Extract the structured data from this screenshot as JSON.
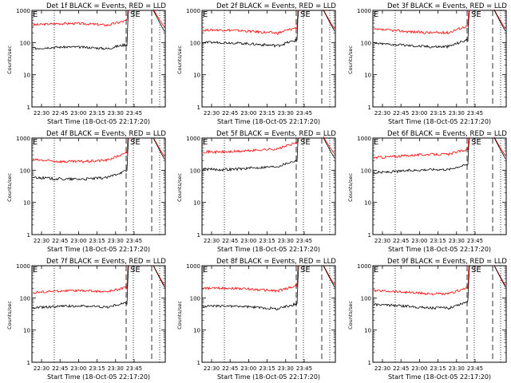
{
  "chart_data": [
    {
      "type": "line",
      "title": "Det 1f BLACK = Events, RED = LLD",
      "xlabel": "Start Time (18-Oct-05 22:17:20)",
      "ylabel": "Counts/sec",
      "ylog": true,
      "ylim": [
        1,
        1000
      ],
      "yticks": [
        "1",
        "10",
        "100",
        "1000"
      ],
      "xticks": [
        "22:30",
        "22:45",
        "23:00",
        "23:15",
        "23:30",
        "23:45"
      ],
      "annotations": [
        "E",
        "SE"
      ],
      "series": [
        {
          "name": "RED",
          "color": "#ff0000",
          "level": 350
        },
        {
          "name": "BLACK",
          "color": "#000000",
          "level": 65
        }
      ]
    },
    {
      "type": "line",
      "title": "Det 2f BLACK = Events, RED = LLD",
      "xlabel": "Start Time (18-Oct-05 22:17:20)",
      "ylabel": "Counts/sec",
      "ylog": true,
      "ylim": [
        1,
        1000
      ],
      "yticks": [
        "1",
        "10",
        "100",
        "1000"
      ],
      "xticks": [
        "22:30",
        "22:45",
        "23:00",
        "23:15",
        "23:30",
        "23:45"
      ],
      "annotations": [
        "E",
        "SE"
      ],
      "series": [
        {
          "name": "RED",
          "color": "#ff0000",
          "level": 220
        },
        {
          "name": "BLACK",
          "color": "#000000",
          "level": 90
        }
      ]
    },
    {
      "type": "line",
      "title": "Det 3f BLACK = Events, RED = LLD",
      "xlabel": "Start Time (18-Oct-05 22:17:20)",
      "ylabel": "Counts/sec",
      "ylog": true,
      "ylim": [
        1,
        1000
      ],
      "yticks": [
        "1",
        "10",
        "100",
        "1000"
      ],
      "xticks": [
        "22:30",
        "22:45",
        "23:00",
        "23:15",
        "23:30",
        "23:45"
      ],
      "annotations": [
        "E",
        "SE"
      ],
      "series": [
        {
          "name": "RED",
          "color": "#ff0000",
          "level": 230
        },
        {
          "name": "BLACK",
          "color": "#000000",
          "level": 85
        }
      ]
    },
    {
      "type": "line",
      "title": "Det 4f BLACK = Events, RED = LLD",
      "xlabel": "Start Time (18-Oct-05 22:17:20)",
      "ylabel": "Counts/sec",
      "ylog": true,
      "ylim": [
        1,
        1000
      ],
      "yticks": [
        "1",
        "10",
        "100",
        "1000"
      ],
      "xticks": [
        "22:30",
        "22:45",
        "23:00",
        "23:15",
        "23:30",
        "23:45"
      ],
      "annotations": [
        "E",
        "SE"
      ],
      "series": [
        {
          "name": "RED",
          "color": "#ff0000",
          "level": 210
        },
        {
          "name": "BLACK",
          "color": "#000000",
          "level": 60
        }
      ]
    },
    {
      "type": "line",
      "title": "Det 5f BLACK = Events, RED = LLD",
      "xlabel": "Start Time (18-Oct-05 22:17:20)",
      "ylabel": "Counts/sec",
      "ylog": true,
      "ylim": [
        1,
        1000
      ],
      "yticks": [
        "1",
        "10",
        "100",
        "1000"
      ],
      "xticks": [
        "22:30",
        "22:45",
        "23:00",
        "23:15",
        "23:30",
        "23:45"
      ],
      "annotations": [
        "E",
        "SE"
      ],
      "series": [
        {
          "name": "RED",
          "color": "#ff0000",
          "level": 420
        },
        {
          "name": "BLACK",
          "color": "#000000",
          "level": 120
        }
      ]
    },
    {
      "type": "line",
      "title": "Det 6f BLACK = Events, RED = LLD",
      "xlabel": "Start Time (18-Oct-05 22:17:20)",
      "ylabel": "Counts/sec",
      "ylog": true,
      "ylim": [
        1,
        1000
      ],
      "yticks": [
        "1",
        "10",
        "100",
        "1000"
      ],
      "xticks": [
        "22:30",
        "22:45",
        "23:00",
        "23:15",
        "23:30",
        "23:45"
      ],
      "annotations": [
        "E",
        "SE"
      ],
      "series": [
        {
          "name": "RED",
          "color": "#ff0000",
          "level": 280
        },
        {
          "name": "BLACK",
          "color": "#000000",
          "level": 95
        }
      ]
    },
    {
      "type": "line",
      "title": "Det 7f BLACK = Events, RED = LLD",
      "xlabel": "Start Time (18-Oct-05 22:17:20)",
      "ylabel": "Counts/sec",
      "ylog": true,
      "ylim": [
        1,
        1000
      ],
      "yticks": [
        "1",
        "10",
        "100",
        "1000"
      ],
      "xticks": [
        "22:30",
        "22:45",
        "23:00",
        "23:15",
        "23:30",
        "23:45"
      ],
      "annotations": [
        "E",
        "SE"
      ],
      "series": [
        {
          "name": "RED",
          "color": "#ff0000",
          "level": 150
        },
        {
          "name": "BLACK",
          "color": "#000000",
          "level": 50
        }
      ]
    },
    {
      "type": "line",
      "title": "Det 8f BLACK = Events, RED = LLD",
      "xlabel": "Start Time (18-Oct-05 22:17:20)",
      "ylabel": "Counts/sec",
      "ylog": true,
      "ylim": [
        1,
        1000
      ],
      "yticks": [
        "1",
        "10",
        "100",
        "1000"
      ],
      "xticks": [
        "22:30",
        "22:45",
        "23:00",
        "23:15",
        "23:30",
        "23:45"
      ],
      "annotations": [
        "E",
        "SE"
      ],
      "series": [
        {
          "name": "RED",
          "color": "#ff0000",
          "level": 180
        },
        {
          "name": "BLACK",
          "color": "#000000",
          "level": 50
        }
      ]
    },
    {
      "type": "line",
      "title": "Det 9f BLACK = Events, RED = LLD",
      "xlabel": "Start Time (18-Oct-05 22:17:20)",
      "ylabel": "Counts/sec",
      "ylog": true,
      "ylim": [
        1,
        1000
      ],
      "yticks": [
        "1",
        "10",
        "100",
        "1000"
      ],
      "xticks": [
        "22:30",
        "22:45",
        "23:00",
        "23:15",
        "23:30",
        "23:45"
      ],
      "annotations": [
        "E",
        "SE"
      ],
      "series": [
        {
          "name": "RED",
          "color": "#ff0000",
          "level": 150
        },
        {
          "name": "BLACK",
          "color": "#000000",
          "level": 55
        }
      ]
    }
  ]
}
